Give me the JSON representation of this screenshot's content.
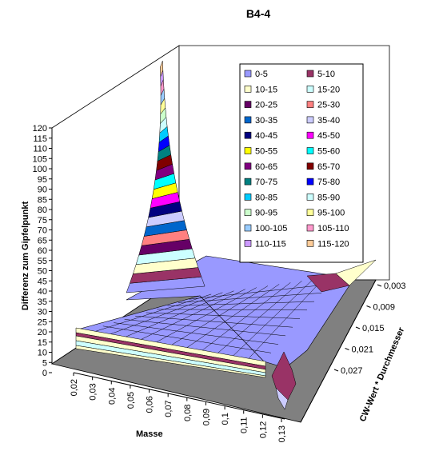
{
  "chart_data": {
    "type": "surface-3d",
    "title": "B4-4",
    "xlabel": "Masse",
    "ylabel": "CW-Wert * Durchmesser",
    "zlabel": "Differenz zum Gipfelpunkt",
    "x_ticks": [
      "0,02",
      "0,03",
      "0,04",
      "0,05",
      "0,06",
      "0,07",
      "0,08",
      "0,09",
      "0,1",
      "0,11",
      "0,12",
      "0,13"
    ],
    "y_ticks": [
      "0,003",
      "0,009",
      "0,015",
      "0,021",
      "0,027"
    ],
    "z_ticks": [
      "0",
      "5",
      "10",
      "15",
      "20",
      "25",
      "30",
      "35",
      "40",
      "45",
      "50",
      "55",
      "60",
      "65",
      "70",
      "75",
      "80",
      "85",
      "90",
      "95",
      "100",
      "105",
      "110",
      "115",
      "120"
    ],
    "zlim": [
      0,
      120
    ],
    "peak_value": 120,
    "legend_position": "top-right",
    "legend": [
      {
        "label": "0-5",
        "color": "#9999ff"
      },
      {
        "label": "5-10",
        "color": "#993366"
      },
      {
        "label": "10-15",
        "color": "#ffffcc"
      },
      {
        "label": "15-20",
        "color": "#ccffff"
      },
      {
        "label": "20-25",
        "color": "#660066"
      },
      {
        "label": "25-30",
        "color": "#ff8080"
      },
      {
        "label": "30-35",
        "color": "#0066cc"
      },
      {
        "label": "35-40",
        "color": "#ccccff"
      },
      {
        "label": "40-45",
        "color": "#000080"
      },
      {
        "label": "45-50",
        "color": "#ff00ff"
      },
      {
        "label": "50-55",
        "color": "#ffff00"
      },
      {
        "label": "55-60",
        "color": "#00ffff"
      },
      {
        "label": "60-65",
        "color": "#800080"
      },
      {
        "label": "65-70",
        "color": "#800000"
      },
      {
        "label": "70-75",
        "color": "#008080"
      },
      {
        "label": "75-80",
        "color": "#0000ff"
      },
      {
        "label": "80-85",
        "color": "#00ccff"
      },
      {
        "label": "85-90",
        "color": "#ccffff"
      },
      {
        "label": "90-95",
        "color": "#ccffcc"
      },
      {
        "label": "95-100",
        "color": "#ffff99"
      },
      {
        "label": "100-105",
        "color": "#99ccff"
      },
      {
        "label": "105-110",
        "color": "#ff99cc"
      },
      {
        "label": "110-115",
        "color": "#cc99ff"
      },
      {
        "label": "115-120",
        "color": "#ffcc99"
      }
    ]
  }
}
